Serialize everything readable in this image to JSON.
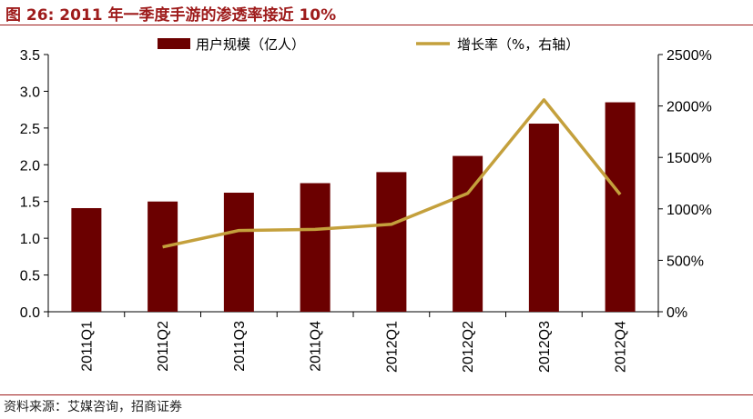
{
  "figure": {
    "title": "图 26:  2011 年一季度手游的渗透率接近 10%",
    "source": "资料来源：艾媒咨询，招商证券"
  },
  "colors": {
    "bar": "#6b0000",
    "line": "#c4a03c",
    "title": "#9e1b1b",
    "axis": "#000000"
  },
  "chart_data": {
    "type": "bar",
    "categories": [
      "2011Q1",
      "2011Q2",
      "2011Q3",
      "2011Q4",
      "2012Q1",
      "2012Q2",
      "2012Q3",
      "2012Q4"
    ],
    "series": [
      {
        "name": "用户规模（亿人）",
        "type": "bar",
        "axis": "left",
        "values": [
          1.41,
          1.5,
          1.62,
          1.75,
          1.9,
          2.12,
          2.56,
          2.85
        ]
      },
      {
        "name": "增长率（%，右轴）",
        "type": "line",
        "axis": "right",
        "values": [
          null,
          630,
          790,
          800,
          850,
          1150,
          2060,
          1140
        ]
      }
    ],
    "y_left": {
      "min": 0,
      "max": 3.5,
      "ticks": [
        "0.0",
        "0.5",
        "1.0",
        "1.5",
        "2.0",
        "2.5",
        "3.0",
        "3.5"
      ]
    },
    "y_right": {
      "min": 0,
      "max": 2500,
      "ticks": [
        "0%",
        "500%",
        "1000%",
        "1500%",
        "2000%",
        "2500%"
      ]
    },
    "legend_position": "top",
    "grid": false
  }
}
